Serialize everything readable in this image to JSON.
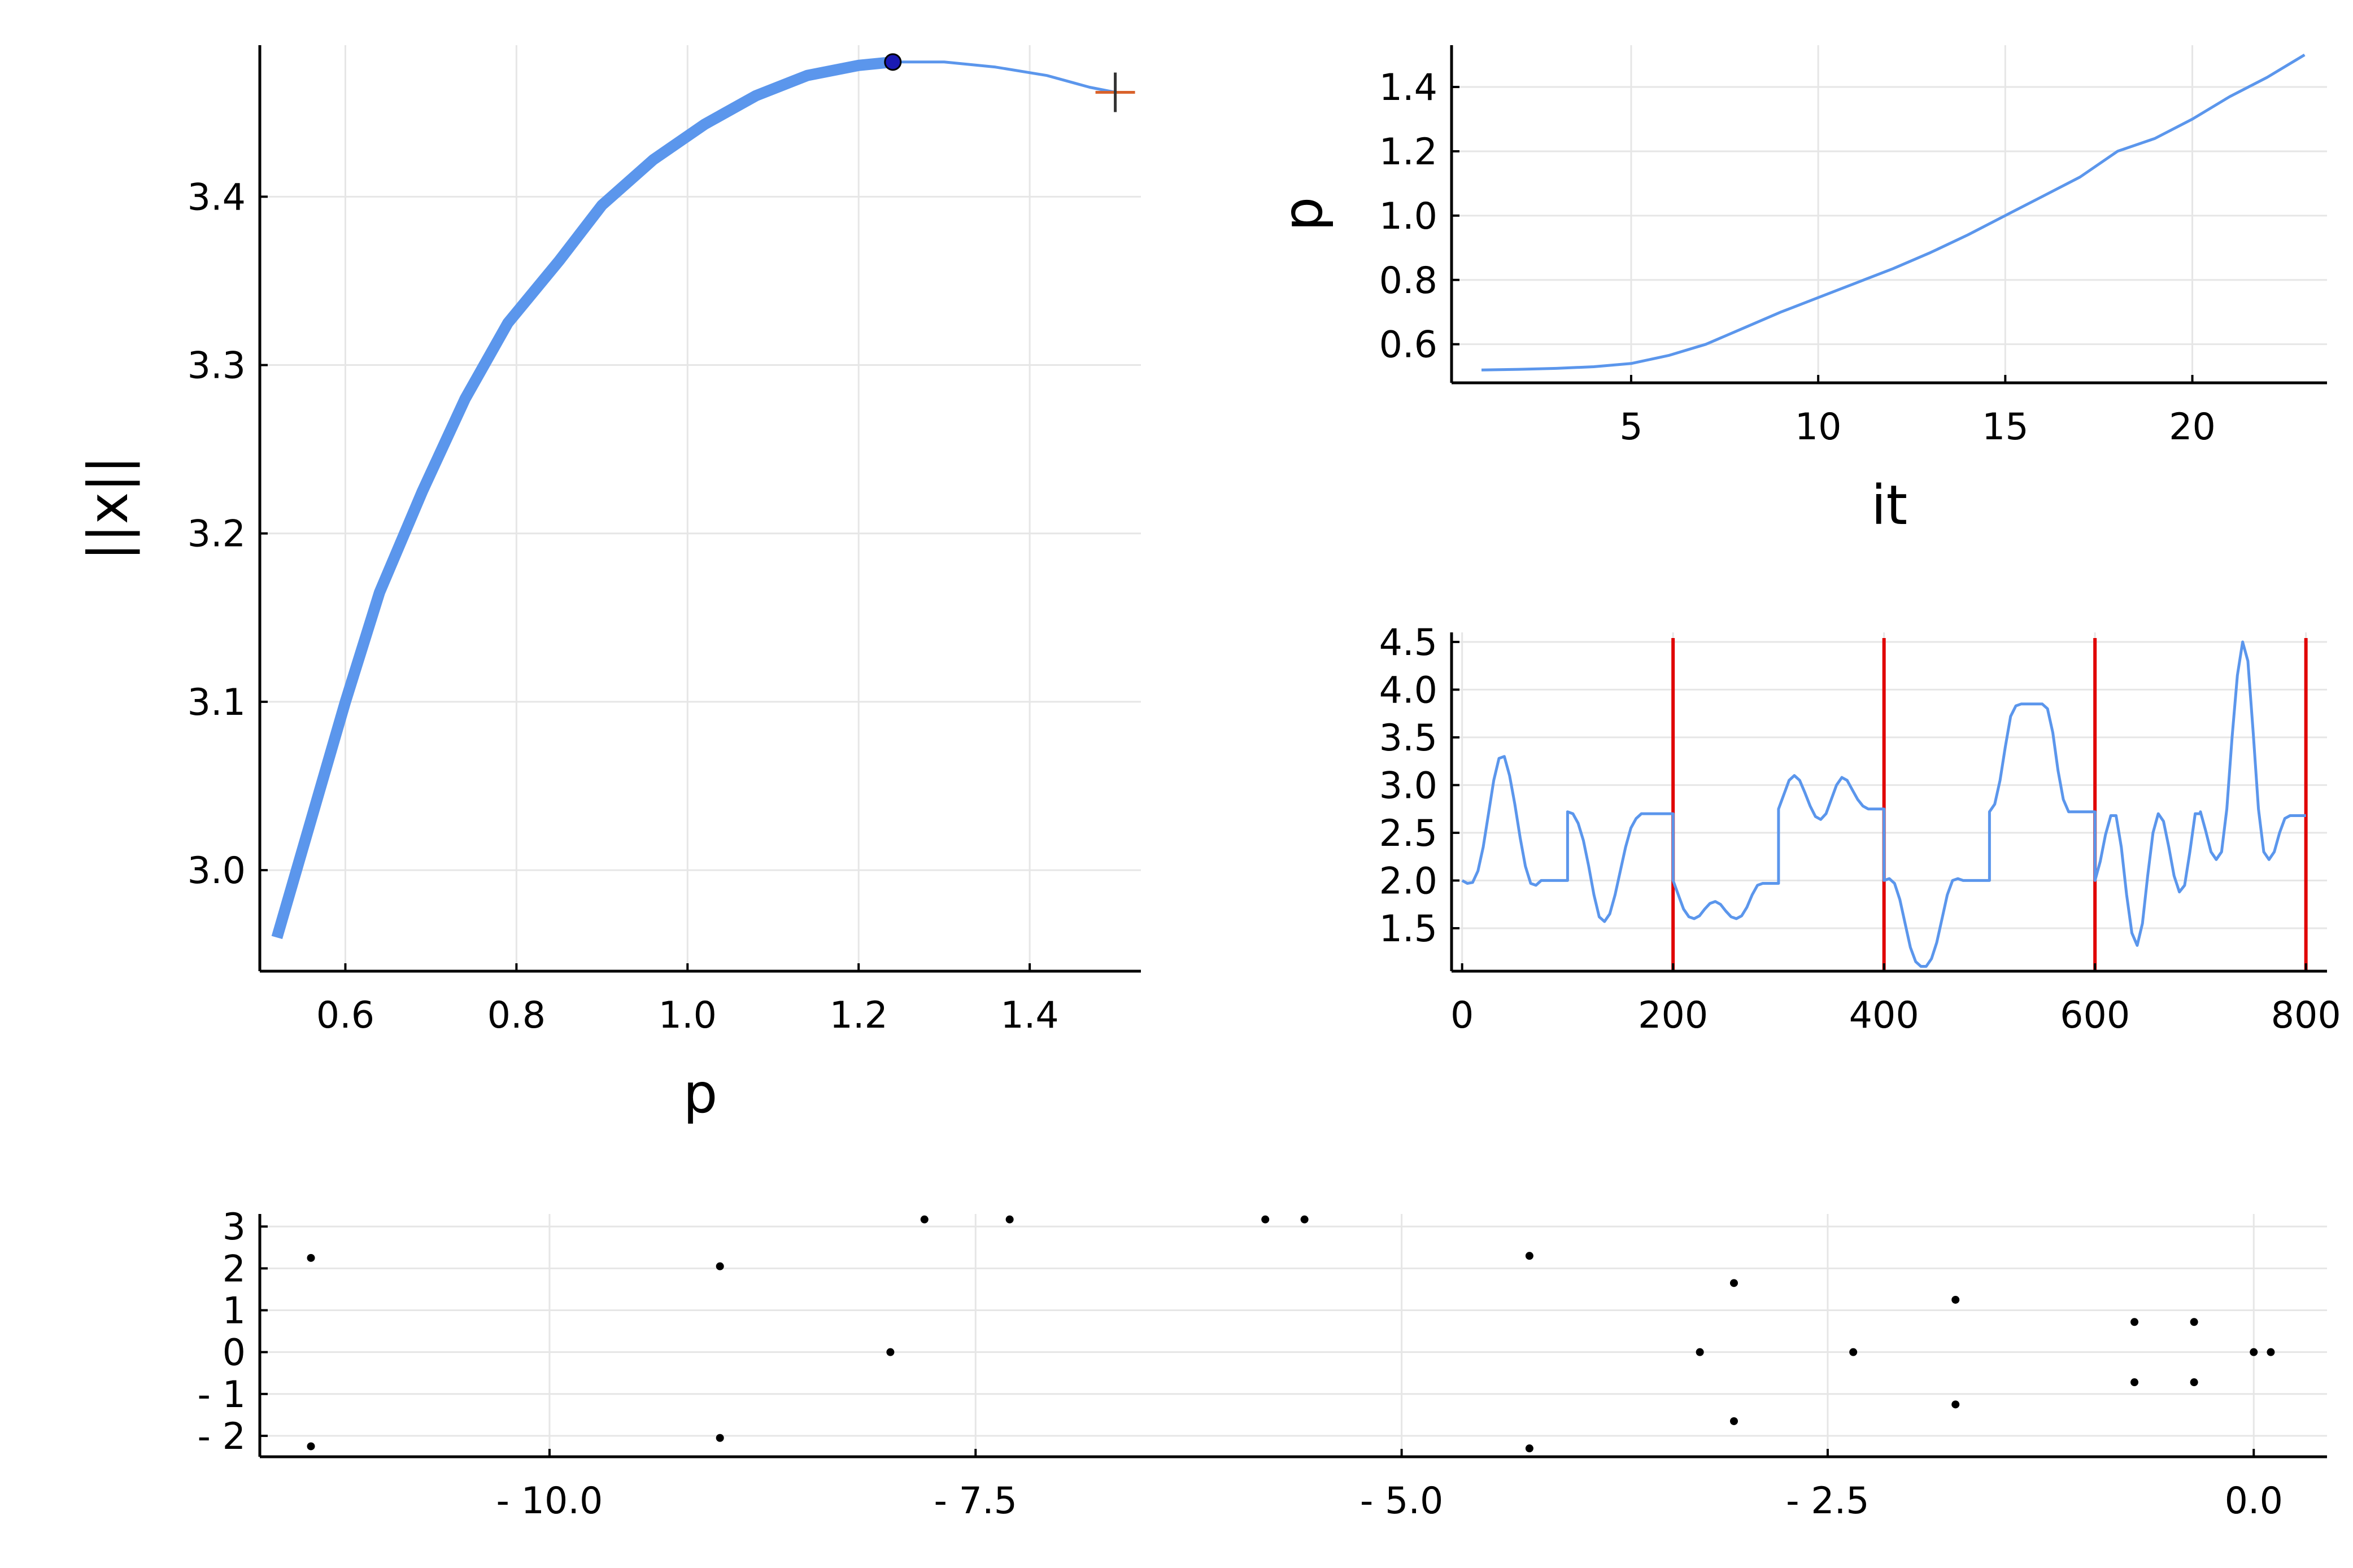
{
  "chart_data": [
    {
      "id": "continuation",
      "type": "line",
      "xlabel": "p",
      "ylabel": "||x||",
      "xlim": [
        0.5,
        1.53
      ],
      "ylim": [
        2.94,
        3.49
      ],
      "xticks": [
        0.6,
        0.8,
        1.0,
        1.2,
        1.4
      ],
      "xtick_labels": [
        "0.6",
        "0.8",
        "1.0",
        "1.2",
        "1.4"
      ],
      "yticks": [
        3.0,
        3.1,
        3.2,
        3.3,
        3.4
      ],
      "ytick_labels": [
        "3.0",
        "3.1",
        "3.2",
        "3.3",
        "3.4"
      ],
      "grid": true,
      "series": [
        {
          "style": "thick",
          "color": "#5b96ec",
          "x": [
            0.52,
            0.56,
            0.6,
            0.64,
            0.69,
            0.74,
            0.79,
            0.85,
            0.9,
            0.96,
            1.02,
            1.08,
            1.14,
            1.2,
            1.24
          ],
          "y": [
            2.96,
            3.03,
            3.1,
            3.165,
            3.225,
            3.28,
            3.325,
            3.362,
            3.395,
            3.422,
            3.443,
            3.46,
            3.472,
            3.478,
            3.48
          ]
        },
        {
          "style": "thin",
          "color": "#5b96ec",
          "x": [
            1.24,
            1.3,
            1.36,
            1.42,
            1.47,
            1.5
          ],
          "y": [
            3.48,
            3.48,
            3.477,
            3.472,
            3.465,
            3.462
          ]
        }
      ],
      "markers": [
        {
          "kind": "dot",
          "x": 1.24,
          "y": 3.48,
          "color": "#1a1ab3"
        },
        {
          "kind": "cross",
          "x": 1.5,
          "y": 3.462,
          "color": "#d9622b"
        }
      ]
    },
    {
      "id": "parameter-history",
      "type": "line",
      "xlabel": "it",
      "ylabel": "p",
      "xlim": [
        0.2,
        23.6
      ],
      "ylim": [
        0.48,
        1.53
      ],
      "xticks": [
        5,
        10,
        15,
        20
      ],
      "xtick_labels": [
        "5",
        "10",
        "15",
        "20"
      ],
      "yticks": [
        0.6,
        0.8,
        1.0,
        1.2,
        1.4
      ],
      "ytick_labels": [
        "0.6",
        "0.8",
        "1.0",
        "1.2",
        "1.4"
      ],
      "grid": true,
      "series": [
        {
          "color": "#5b96ec",
          "x": [
            1,
            2,
            3,
            4,
            5,
            6,
            7,
            8,
            9,
            10,
            11,
            12,
            13,
            14,
            15,
            16,
            17,
            18,
            19,
            20,
            21,
            22,
            23
          ],
          "y": [
            0.52,
            0.522,
            0.525,
            0.53,
            0.54,
            0.565,
            0.6,
            0.65,
            0.7,
            0.745,
            0.79,
            0.835,
            0.885,
            0.94,
            1.0,
            1.06,
            1.12,
            1.2,
            1.24,
            1.3,
            1.37,
            1.43,
            1.5
          ]
        }
      ]
    },
    {
      "id": "solution-profile",
      "type": "line",
      "xlabel": "",
      "ylabel": "",
      "xlim": [
        -10,
        820
      ],
      "ylim": [
        1.05,
        4.6
      ],
      "xticks": [
        0,
        200,
        400,
        600,
        800
      ],
      "xtick_labels": [
        "0",
        "200",
        "400",
        "600",
        "800"
      ],
      "yticks": [
        1.5,
        2.0,
        2.5,
        3.0,
        3.5,
        4.0,
        4.5
      ],
      "ytick_labels": [
        "1.5",
        "2.0",
        "2.5",
        "3.0",
        "3.5",
        "4.0",
        "4.5"
      ],
      "grid": true,
      "vlines": {
        "x": [
          200,
          400,
          600,
          800
        ],
        "color": "#e00000"
      },
      "series": [
        {
          "color": "#5b96ec",
          "x": [
            0,
            5,
            10,
            15,
            20,
            25,
            30,
            35,
            40,
            45,
            50,
            55,
            60,
            65,
            70,
            75,
            80,
            85,
            90,
            95,
            100,
            100,
            105,
            110,
            115,
            120,
            125,
            130,
            135,
            140,
            145,
            150,
            155,
            160,
            165,
            170,
            175,
            180,
            185,
            190,
            195,
            200,
            200,
            205,
            210,
            215,
            220,
            225,
            230,
            235,
            240,
            245,
            250,
            255,
            260,
            265,
            270,
            275,
            280,
            285,
            290,
            295,
            300,
            300,
            305,
            310,
            315,
            320,
            325,
            330,
            335,
            340,
            345,
            350,
            355,
            360,
            365,
            370,
            375,
            380,
            385,
            390,
            395,
            400,
            400,
            405,
            410,
            415,
            420,
            425,
            430,
            435,
            440,
            445,
            450,
            455,
            460,
            465,
            470,
            475,
            480,
            485,
            490,
            495,
            500,
            500,
            505,
            510,
            515,
            520,
            525,
            530,
            535,
            540,
            545,
            550,
            555,
            560,
            565,
            570,
            575,
            580,
            585,
            590,
            595,
            600,
            600,
            605,
            610,
            615,
            620,
            625,
            630,
            635,
            640,
            645,
            650,
            655,
            660,
            665,
            670,
            675,
            680,
            685,
            690,
            695,
            700,
            700,
            705,
            710,
            715,
            720,
            725,
            730,
            735,
            740,
            745,
            750,
            755,
            760,
            765,
            770,
            775,
            780,
            785,
            790,
            795,
            800
          ],
          "y": [
            2.0,
            1.97,
            1.98,
            2.1,
            2.35,
            2.7,
            3.05,
            3.28,
            3.3,
            3.1,
            2.8,
            2.45,
            2.15,
            1.97,
            1.95,
            2.0,
            2.0,
            2.0,
            2.0,
            2.0,
            2.0,
            2.72,
            2.7,
            2.6,
            2.42,
            2.15,
            1.85,
            1.62,
            1.57,
            1.65,
            1.85,
            2.1,
            2.35,
            2.55,
            2.65,
            2.7,
            2.7,
            2.7,
            2.7,
            2.7,
            2.7,
            2.7,
            2.0,
            1.85,
            1.7,
            1.62,
            1.6,
            1.63,
            1.7,
            1.76,
            1.78,
            1.75,
            1.68,
            1.62,
            1.6,
            1.63,
            1.72,
            1.85,
            1.95,
            1.97,
            1.97,
            1.97,
            1.97,
            2.75,
            2.9,
            3.05,
            3.1,
            3.05,
            2.92,
            2.78,
            2.67,
            2.64,
            2.7,
            2.85,
            3.0,
            3.08,
            3.05,
            2.95,
            2.85,
            2.78,
            2.75,
            2.75,
            2.75,
            2.75,
            2.0,
            2.02,
            1.97,
            1.8,
            1.55,
            1.3,
            1.15,
            1.1,
            1.1,
            1.18,
            1.35,
            1.6,
            1.85,
            2.0,
            2.02,
            2.0,
            2.0,
            2.0,
            2.0,
            2.0,
            2.0,
            2.72,
            2.8,
            3.05,
            3.4,
            3.72,
            3.83,
            3.85,
            3.85,
            3.85,
            3.85,
            3.85,
            3.8,
            3.55,
            3.15,
            2.85,
            2.72,
            2.72,
            2.72,
            2.72,
            2.72,
            2.72,
            2.0,
            2.2,
            2.48,
            2.68,
            2.68,
            2.35,
            1.85,
            1.45,
            1.32,
            1.55,
            2.05,
            2.5,
            2.7,
            2.62,
            2.35,
            2.05,
            1.88,
            1.95,
            2.3,
            2.7,
            2.7,
            2.72,
            2.52,
            2.3,
            2.22,
            2.3,
            2.75,
            3.5,
            4.15,
            4.5,
            4.3,
            3.55,
            2.75,
            2.3,
            2.22,
            2.3,
            2.5,
            2.65,
            2.68,
            2.68,
            2.68,
            2.68
          ]
        }
      ]
    },
    {
      "id": "eigenvalues",
      "type": "scatter",
      "xlabel": "",
      "ylabel": "",
      "xlim": [
        -11.7,
        0.43
      ],
      "ylim": [
        -2.5,
        3.3
      ],
      "xticks": [
        -10.0,
        -7.5,
        -5.0,
        -2.5,
        0.0
      ],
      "xtick_labels": [
        "- 10.0",
        "- 7.5",
        "- 5.0",
        "- 2.5",
        "0.0"
      ],
      "yticks": [
        -2,
        -1,
        0,
        1,
        2,
        3
      ],
      "ytick_labels": [
        "- 2",
        "- 1",
        "0",
        "1",
        "2",
        "3"
      ],
      "grid": true,
      "color": "#000000",
      "points": [
        [
          -11.4,
          2.25
        ],
        [
          -11.4,
          -2.25
        ],
        [
          -9.0,
          2.05
        ],
        [
          -9.0,
          -2.05
        ],
        [
          -8.0,
          0.0
        ],
        [
          -7.8,
          3.17
        ],
        [
          -7.3,
          3.17
        ],
        [
          -5.8,
          3.17
        ],
        [
          -5.57,
          3.17
        ],
        [
          -4.25,
          2.3
        ],
        [
          -4.25,
          -2.3
        ],
        [
          -3.25,
          0.0
        ],
        [
          -3.05,
          1.65
        ],
        [
          -3.05,
          -1.65
        ],
        [
          -2.35,
          0.0
        ],
        [
          -1.75,
          1.25
        ],
        [
          -1.75,
          -1.25
        ],
        [
          -0.7,
          0.72
        ],
        [
          -0.7,
          -0.72
        ],
        [
          -0.35,
          0.72
        ],
        [
          -0.35,
          -0.72
        ],
        [
          0.0,
          0.0
        ],
        [
          0.1,
          0.0
        ]
      ]
    }
  ]
}
